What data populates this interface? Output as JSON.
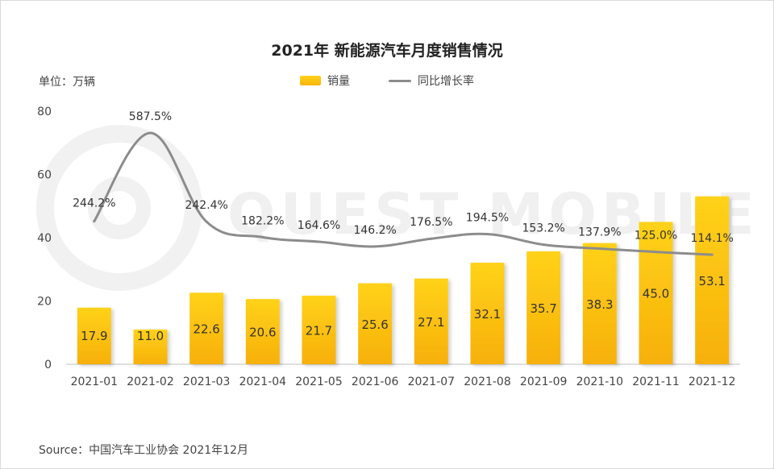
{
  "title": "2021年 新能源汽车月度销售情况",
  "unit_label": "单位：万辆",
  "source": "Source：中国汽车工业协会 2021年12月",
  "watermark": "QUEST MOBILE",
  "chart_data": {
    "type": "bar",
    "categories": [
      "2021-01",
      "2021-02",
      "2021-03",
      "2021-04",
      "2021-05",
      "2021-06",
      "2021-07",
      "2021-08",
      "2021-09",
      "2021-10",
      "2021-11",
      "2021-12"
    ],
    "series": [
      {
        "name": "销量",
        "type": "bar",
        "color": "#F9C20F",
        "values": [
          17.9,
          11.0,
          22.6,
          20.6,
          21.7,
          25.6,
          27.1,
          32.1,
          35.7,
          38.3,
          45.0,
          53.1
        ],
        "labels": [
          "17.9",
          "11.0",
          "22.6",
          "20.6",
          "21.7",
          "25.6",
          "27.1",
          "32.1",
          "35.7",
          "38.3",
          "45.0",
          "53.1"
        ]
      },
      {
        "name": "同比增长率",
        "type": "line",
        "color": "#8c8c8c",
        "values": [
          244.2,
          587.5,
          242.4,
          182.2,
          164.6,
          146.2,
          176.5,
          194.5,
          153.2,
          137.9,
          125.0,
          114.1
        ],
        "labels": [
          "244.2%",
          "587.5%",
          "242.4%",
          "182.2%",
          "164.6%",
          "146.2%",
          "176.5%",
          "194.5%",
          "153.2%",
          "137.9%",
          "125.0%",
          "114.1%"
        ]
      }
    ],
    "ylim": [
      0,
      80
    ],
    "yticks": [
      "0",
      "20",
      "40",
      "60",
      "80"
    ],
    "ytick_values": [
      0,
      20,
      40,
      60,
      80
    ],
    "grid": false,
    "legend_position": "top-center"
  }
}
